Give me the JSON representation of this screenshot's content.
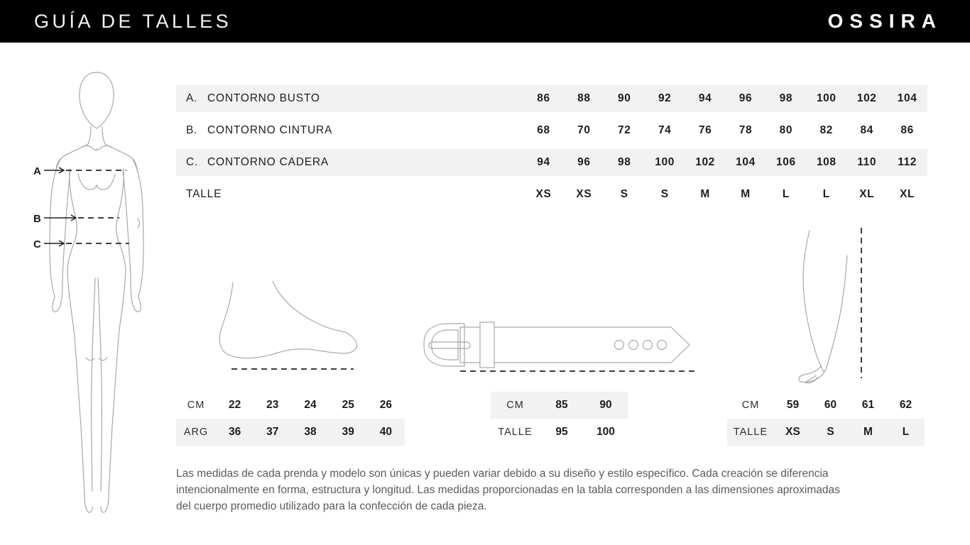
{
  "header": {
    "title": "GUÍA DE TALLES",
    "brand": "OSSIRA"
  },
  "figure": {
    "labels": [
      "A",
      "B",
      "C"
    ]
  },
  "main_table": {
    "rows": [
      {
        "prefix": "A.",
        "label": "CONTORNO BUSTO",
        "values": [
          "86",
          "88",
          "90",
          "92",
          "94",
          "96",
          "98",
          "100",
          "102",
          "104"
        ],
        "shaded": true
      },
      {
        "prefix": "B.",
        "label": "CONTORNO CINTURA",
        "values": [
          "68",
          "70",
          "72",
          "74",
          "76",
          "78",
          "80",
          "82",
          "84",
          "86"
        ],
        "shaded": false
      },
      {
        "prefix": "C.",
        "label": "CONTORNO CADERA",
        "values": [
          "94",
          "96",
          "98",
          "100",
          "102",
          "104",
          "106",
          "108",
          "110",
          "112"
        ],
        "shaded": true
      },
      {
        "prefix": "",
        "label": "TALLE",
        "values": [
          "XS",
          "XS",
          "S",
          "S",
          "M",
          "M",
          "L",
          "L",
          "XL",
          "XL"
        ],
        "shaded": false
      }
    ]
  },
  "shoe_table": {
    "rows": [
      {
        "label": "CM",
        "values": [
          "22",
          "23",
          "24",
          "25",
          "26"
        ],
        "shaded": false
      },
      {
        "label": "ARG",
        "values": [
          "36",
          "37",
          "38",
          "39",
          "40"
        ],
        "shaded": true
      }
    ]
  },
  "belt_table": {
    "rows": [
      {
        "label": "CM",
        "values": [
          "85",
          "90"
        ],
        "shaded": true
      },
      {
        "label": "TALLE",
        "values": [
          "95",
          "100"
        ],
        "shaded": false
      }
    ]
  },
  "sleeve_table": {
    "rows": [
      {
        "label": "CM",
        "values": [
          "59",
          "60",
          "61",
          "62"
        ],
        "shaded": false
      },
      {
        "label": "TALLE",
        "values": [
          "XS",
          "S",
          "M",
          "L"
        ],
        "shaded": true
      }
    ]
  },
  "note": {
    "lines": [
      "Las medidas de cada prenda y modelo son únicas y pueden variar debido a su diseño y estilo específico. Cada creación se diferencia",
      "intencionalmente en forma, estructura y longitud. Las medidas proporcionadas en la tabla corresponden a las dimensiones aproximadas",
      "del cuerpo promedio utilizado para la confección de cada pieza."
    ]
  },
  "colors": {
    "header_bg": "#000000",
    "header_text": "#ffffff",
    "shaded_row": "#f2f2f2",
    "table_text": "#1d1d1b",
    "note_text": "#5a5a5a",
    "drawing_line": "#a8a8a8",
    "measure_line": "#3d3d3d"
  }
}
